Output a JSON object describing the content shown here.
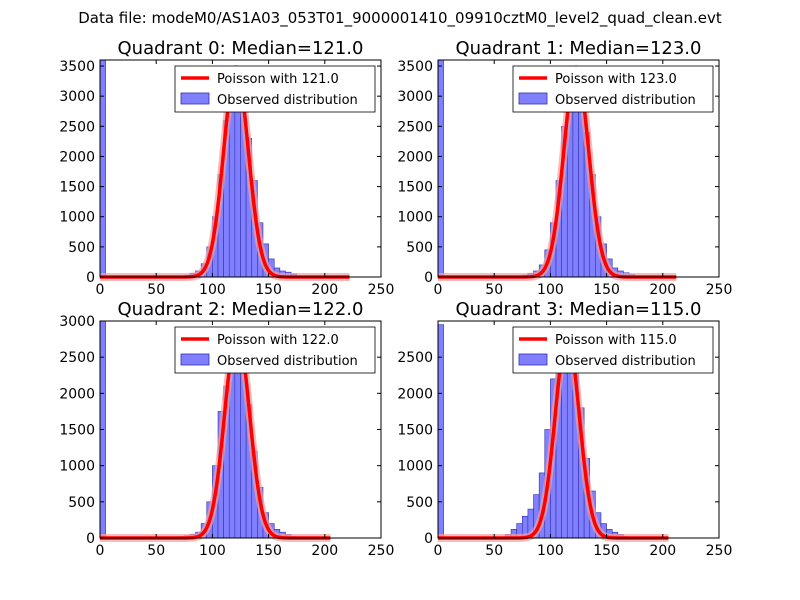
{
  "figure": {
    "suptitle": "Data file: modeM0/AS1A03_053T01_9000001410_09910cztM0_level2_quad_clean.evt"
  },
  "colors": {
    "fit": "#ff0000",
    "bars": "#8080ff",
    "bar_edge": "#3030b0",
    "fit_shadow": "#f4a0a0",
    "axes": "#000000"
  },
  "chart_data": [
    {
      "type": "bar",
      "title": "Quadrant 0: Median=121.0",
      "xlim": [
        0,
        250
      ],
      "ylim": [
        0,
        3600
      ],
      "xticks": [
        0,
        50,
        100,
        150,
        200,
        250
      ],
      "yticks": [
        0,
        500,
        1000,
        1500,
        2000,
        2500,
        3000,
        3500
      ],
      "bin_width": 5,
      "bins_x": [
        0,
        70,
        75,
        80,
        85,
        90,
        95,
        100,
        105,
        110,
        115,
        120,
        125,
        130,
        135,
        140,
        145,
        150,
        155,
        160,
        165,
        170,
        175
      ],
      "bins_y": [
        3600,
        20,
        30,
        60,
        100,
        220,
        500,
        1000,
        1700,
        2600,
        3450,
        3300,
        2800,
        2300,
        1600,
        900,
        550,
        300,
        150,
        100,
        80,
        50,
        20
      ],
      "fit_label": "Poisson with 121.0",
      "bar_label": "Observed distribution",
      "fit": {
        "mean": 121.0,
        "peak": 3450,
        "x_range": [
          0,
          222
        ]
      }
    },
    {
      "type": "bar",
      "title": "Quadrant 1: Median=123.0",
      "xlim": [
        0,
        250
      ],
      "ylim": [
        0,
        3600
      ],
      "xticks": [
        0,
        50,
        100,
        150,
        200,
        250
      ],
      "yticks": [
        0,
        500,
        1000,
        1500,
        2000,
        2500,
        3000,
        3500
      ],
      "bin_width": 5,
      "bins_x": [
        0,
        70,
        75,
        80,
        85,
        90,
        95,
        100,
        105,
        110,
        115,
        120,
        125,
        130,
        135,
        140,
        145,
        150,
        155,
        160,
        165,
        170,
        175
      ],
      "bins_y": [
        3600,
        20,
        30,
        60,
        100,
        200,
        450,
        900,
        1600,
        2500,
        3300,
        3450,
        3000,
        2400,
        1700,
        1000,
        550,
        300,
        150,
        100,
        70,
        40,
        20
      ],
      "fit_label": "Poisson with 123.0",
      "bar_label": "Observed distribution",
      "fit": {
        "mean": 123.0,
        "peak": 3450,
        "x_range": [
          0,
          212
        ]
      }
    },
    {
      "type": "bar",
      "title": "Quadrant 2: Median=122.0",
      "xlim": [
        0,
        250
      ],
      "ylim": [
        0,
        3000
      ],
      "xticks": [
        0,
        50,
        100,
        150,
        200,
        250
      ],
      "yticks": [
        0,
        500,
        1000,
        1500,
        2000,
        2500,
        3000
      ],
      "bin_width": 5,
      "bins_x": [
        0,
        70,
        75,
        80,
        85,
        90,
        95,
        100,
        105,
        110,
        115,
        120,
        125,
        130,
        135,
        140,
        145,
        150,
        155,
        160,
        165,
        170
      ],
      "bins_y": [
        3000,
        20,
        30,
        50,
        80,
        200,
        500,
        1000,
        1750,
        2100,
        2550,
        2800,
        2500,
        1850,
        1200,
        700,
        350,
        200,
        120,
        80,
        50,
        20
      ],
      "fit_label": "Poisson with 122.0",
      "bar_label": "Observed distribution",
      "fit": {
        "mean": 122.0,
        "peak": 2850,
        "x_range": [
          0,
          205
        ]
      }
    },
    {
      "type": "bar",
      "title": "Quadrant 3: Median=115.0",
      "xlim": [
        0,
        250
      ],
      "ylim": [
        0,
        3000
      ],
      "xticks": [
        0,
        50,
        100,
        150,
        200,
        250
      ],
      "yticks": [
        0,
        500,
        1000,
        1500,
        2000,
        2500
      ],
      "bin_width": 5,
      "bins_x": [
        0,
        60,
        65,
        70,
        75,
        80,
        85,
        90,
        95,
        100,
        105,
        110,
        115,
        120,
        125,
        130,
        135,
        140,
        145,
        150,
        155,
        160,
        165
      ],
      "bins_y": [
        2950,
        50,
        120,
        200,
        300,
        400,
        600,
        900,
        1500,
        2200,
        2800,
        2700,
        2850,
        2500,
        1800,
        1100,
        650,
        350,
        200,
        120,
        80,
        50,
        20
      ],
      "fit_label": "Poisson with 115.0",
      "bar_label": "Observed distribution",
      "fit": {
        "mean": 115.0,
        "peak": 2800,
        "x_range": [
          0,
          205
        ]
      }
    }
  ]
}
